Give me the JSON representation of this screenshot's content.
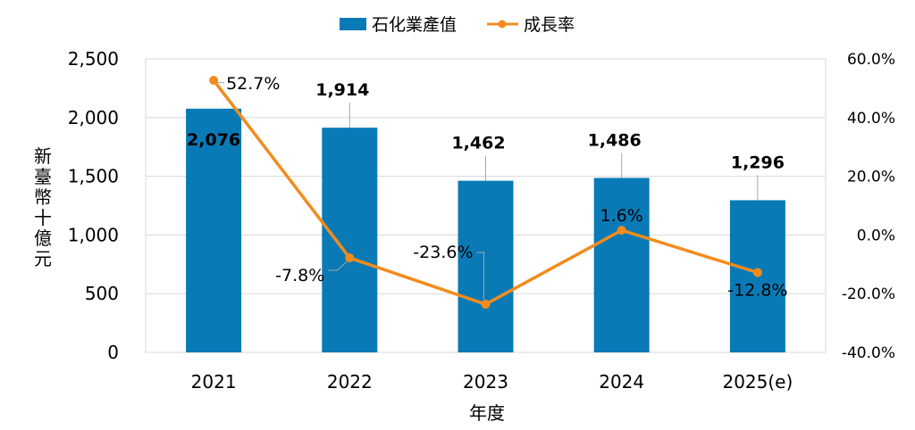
{
  "chart_data": {
    "type": "bar+line",
    "categories": [
      "2021",
      "2022",
      "2023",
      "2024",
      "2025(e)"
    ],
    "series": [
      {
        "name": "石化業產值",
        "type": "bar",
        "axis": "left",
        "color": "#0a7ab6",
        "values": [
          2076,
          1914,
          1462,
          1486,
          1296
        ],
        "labels": [
          "2,076",
          "1,914",
          "1,462",
          "1,486",
          "1,296"
        ]
      },
      {
        "name": "成長率",
        "type": "line",
        "axis": "right",
        "color": "#f28c1e",
        "values": [
          52.7,
          -7.8,
          -23.6,
          1.6,
          -12.8
        ],
        "labels": [
          "52.7%",
          "-7.8%",
          "-23.6%",
          "1.6%",
          "-12.8%"
        ]
      }
    ],
    "xlabel": "年度",
    "ylabel": "新臺幣十億元",
    "ylim": [
      0,
      2500
    ],
    "yticks": [
      "0",
      "500",
      "1,000",
      "1,500",
      "2,000",
      "2,500"
    ],
    "y2lim": [
      -40,
      60
    ],
    "y2ticks": [
      "-40.0%",
      "-20.0%",
      "0.0%",
      "20.0%",
      "40.0%",
      "60.0%"
    ],
    "grid": true,
    "legend": "top-center"
  }
}
